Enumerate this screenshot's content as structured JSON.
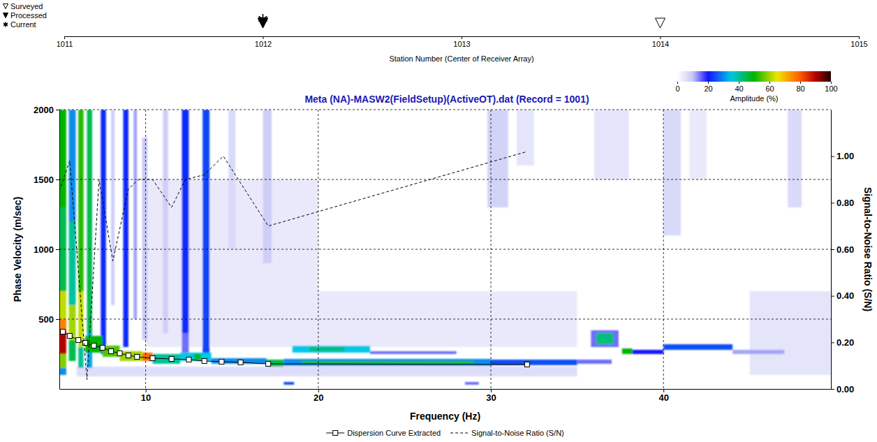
{
  "chart_data": [
    {
      "type": "scatter",
      "xlabel": "Station Number (Center of Receiver Array)",
      "xlim": [
        1011,
        1015
      ],
      "xticks": [
        1011,
        1012,
        1013,
        1014,
        1015
      ],
      "legend": "top-left",
      "series": [
        {
          "name": "Surveyed",
          "marker": "triangle-open",
          "color": "#000000",
          "values": [
            1012,
            1014
          ]
        },
        {
          "name": "Processed",
          "marker": "triangle-filled",
          "color": "#000000",
          "values": [
            1012
          ]
        },
        {
          "name": "Current",
          "marker": "asterisk",
          "color": "#000000",
          "values": [
            1012
          ]
        }
      ]
    },
    {
      "type": "heatmap",
      "title": "Meta (NA)-MASW2(FieldSetup)(ActiveOT).dat (Record = 1001)",
      "xlabel": "Frequency (Hz)",
      "ylabel": "Phase Velocity (m/sec)",
      "y2label": "Signal-to-Noise Ratio (S/N)",
      "xlim": [
        5,
        49.7
      ],
      "xticks": [
        10,
        20,
        30,
        40
      ],
      "ylim": [
        0,
        2000
      ],
      "yticks": [
        500,
        1000,
        1500,
        2000
      ],
      "y2lim": [
        0,
        1.2
      ],
      "y2ticks": [
        {
          "value": 0,
          "label": "0.00"
        },
        {
          "value": 0.2,
          "label": "0.20"
        },
        {
          "value": 0.4,
          "label": "0.40"
        },
        {
          "value": 0.6,
          "label": "0.60"
        },
        {
          "value": 0.8,
          "label": "0.80"
        },
        {
          "value": 1,
          "label": "1.00"
        }
      ],
      "grid": true,
      "legend": "bottom",
      "colorbar": {
        "label": "Amplitude (%)",
        "range": [
          0,
          100
        ],
        "ticks": [
          0,
          20,
          40,
          60,
          80,
          100
        ]
      },
      "cells": [
        [
          10,
          20,
          300,
          1500,
          4
        ],
        [
          20,
          35,
          300,
          700,
          4
        ],
        [
          29.8,
          31,
          1300,
          2000,
          8
        ],
        [
          31.5,
          32.5,
          1600,
          2000,
          5
        ],
        [
          36,
          38,
          1500,
          2000,
          5
        ],
        [
          40,
          41,
          1100,
          2000,
          7
        ],
        [
          41.5,
          42.5,
          1500,
          2000,
          4
        ],
        [
          47.2,
          48,
          1300,
          2000,
          7
        ],
        [
          45,
          49.7,
          100,
          700,
          5
        ],
        [
          14.8,
          15.2,
          1000,
          2000,
          7
        ],
        [
          16.8,
          17.3,
          900,
          2000,
          9
        ],
        [
          11,
          11.3,
          400,
          2000,
          9
        ],
        [
          9.3,
          9.5,
          500,
          2000,
          12
        ],
        [
          8,
          8.2,
          600,
          2000,
          9
        ],
        [
          6,
          35,
          90,
          160,
          6
        ],
        [
          5,
          5.4,
          1300,
          2000,
          50
        ],
        [
          5,
          5.4,
          700,
          1300,
          45
        ],
        [
          5,
          5.4,
          500,
          700,
          62
        ],
        [
          5,
          5.4,
          420,
          500,
          76
        ],
        [
          5,
          5.4,
          250,
          420,
          90
        ],
        [
          5,
          5.4,
          150,
          250,
          58
        ],
        [
          5,
          5.4,
          100,
          150,
          30
        ],
        [
          5.55,
          5.95,
          1200,
          2000,
          30
        ],
        [
          5.55,
          5.95,
          600,
          1200,
          40
        ],
        [
          5.55,
          5.95,
          350,
          600,
          60
        ],
        [
          5.55,
          5.95,
          200,
          350,
          45
        ],
        [
          6.1,
          6.4,
          700,
          2000,
          52
        ],
        [
          6.1,
          6.4,
          300,
          700,
          62
        ],
        [
          6.1,
          6.4,
          150,
          300,
          40
        ],
        [
          6.6,
          6.9,
          400,
          2000,
          45
        ],
        [
          6.6,
          6.9,
          150,
          400,
          32
        ],
        [
          7.4,
          7.7,
          250,
          2000,
          22
        ],
        [
          8.7,
          9,
          300,
          2000,
          22
        ],
        [
          9.8,
          10.1,
          350,
          1800,
          10
        ],
        [
          12.1,
          12.5,
          400,
          2000,
          22
        ],
        [
          12.1,
          12.5,
          220,
          400,
          15
        ],
        [
          13.3,
          13.7,
          250,
          2000,
          24
        ],
        [
          6.5,
          7.5,
          260,
          380,
          50
        ],
        [
          7.5,
          8.5,
          230,
          310,
          55
        ],
        [
          8.5,
          9.8,
          200,
          270,
          60
        ],
        [
          9.8,
          10.4,
          200,
          260,
          78
        ],
        [
          10.4,
          12,
          180,
          250,
          40
        ],
        [
          12,
          13.8,
          200,
          260,
          35
        ],
        [
          12.8,
          13.2,
          210,
          250,
          50
        ],
        [
          13.8,
          17,
          180,
          220,
          30
        ],
        [
          17,
          18,
          160,
          210,
          45
        ],
        [
          18,
          30,
          165,
          215,
          30
        ],
        [
          19,
          29,
          180,
          200,
          52
        ],
        [
          30,
          35,
          170,
          210,
          25
        ],
        [
          35,
          37,
          180,
          210,
          15
        ],
        [
          18.5,
          23,
          260,
          310,
          35
        ],
        [
          19.5,
          21.5,
          270,
          300,
          42
        ],
        [
          23,
          28,
          250,
          270,
          15
        ],
        [
          35.8,
          37.4,
          300,
          420,
          15
        ],
        [
          36.1,
          37.1,
          320,
          400,
          42
        ],
        [
          37.6,
          38.2,
          250,
          290,
          50
        ],
        [
          38.2,
          40,
          250,
          280,
          20
        ],
        [
          40,
          44,
          280,
          320,
          25
        ],
        [
          44,
          47,
          250,
          280,
          12
        ],
        [
          18,
          18.6,
          30,
          50,
          25
        ],
        [
          28.5,
          29.3,
          30,
          50,
          15
        ]
      ],
      "series": [
        {
          "name": "Dispersion Curve Extracted",
          "type": "line",
          "marker": "square",
          "line_style": "solid",
          "color": "#000000",
          "x": [
            5.2,
            5.6,
            6.1,
            6.5,
            7.0,
            7.5,
            8.0,
            8.5,
            9.0,
            9.5,
            10.4,
            11.5,
            12.5,
            13.4,
            14.4,
            15.5,
            17.1,
            32.1
          ],
          "values": [
            410,
            380,
            350,
            330,
            310,
            295,
            270,
            255,
            240,
            230,
            220,
            215,
            210,
            200,
            195,
            190,
            180,
            175
          ]
        },
        {
          "name": "Signal-to-Noise Ratio (S/N)",
          "type": "line",
          "line_style": "dashed",
          "axis": "y2",
          "color": "#000000",
          "x": [
            5.0,
            5.6,
            6.6,
            7.3,
            8.1,
            9.0,
            9.6,
            10.4,
            11.5,
            12.3,
            13.4,
            14.5,
            17.1,
            32.1
          ],
          "values": [
            0.85,
            0.98,
            0.04,
            0.9,
            0.55,
            0.86,
            0.9,
            0.9,
            0.78,
            0.9,
            0.92,
            1.0,
            0.7,
            1.02
          ]
        }
      ]
    }
  ]
}
